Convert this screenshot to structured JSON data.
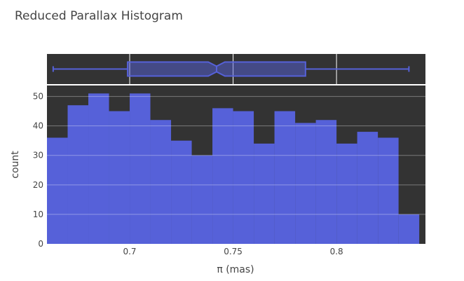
{
  "chart_data": {
    "type": "bar",
    "title": "Reduced Parallax Histogram",
    "xlabel": "π (mas)",
    "ylabel": "count",
    "x_ticks": [
      0.7,
      0.75,
      0.8
    ],
    "x_tick_labels": [
      "0.7",
      "0.75",
      "0.8"
    ],
    "y_ticks": [
      0,
      10,
      20,
      30,
      40,
      50
    ],
    "y_tick_labels": [
      "0",
      "10",
      "20",
      "30",
      "40",
      "50"
    ],
    "xlim": [
      0.66,
      0.843
    ],
    "ylim": [
      0,
      53.7
    ],
    "bin_width": 0.01,
    "bins_start": [
      0.66,
      0.67,
      0.68,
      0.69,
      0.7,
      0.71,
      0.72,
      0.73,
      0.74,
      0.75,
      0.76,
      0.77,
      0.78,
      0.79,
      0.8,
      0.81,
      0.82,
      0.83
    ],
    "values": [
      36,
      47,
      51,
      45,
      51,
      42,
      35,
      30,
      46,
      45,
      34,
      45,
      41,
      42,
      34,
      38,
      36,
      10
    ],
    "bar_color": "#5661d9",
    "plot_bgcolor": "#333333",
    "grid": true,
    "grid_color": "#ffffff",
    "boxplot": {
      "orientation": "horizontal",
      "whisker_low": 0.663,
      "q1": 0.699,
      "median": 0.742,
      "q3": 0.785,
      "whisker_high": 0.835,
      "notch_low": 0.738,
      "notch_high": 0.746,
      "line_color": "#5661d9",
      "fill_color": "#5661d9"
    }
  }
}
